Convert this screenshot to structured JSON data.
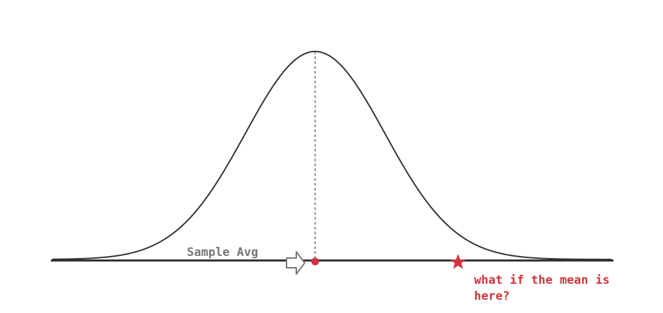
{
  "diagram": {
    "sample_label": "Sample Avg",
    "mean_label_line1": "what if the mean is",
    "mean_label_line2": "here?",
    "curve_color": "#333333",
    "sample_color": "#d0343e",
    "mean_color": "#d0343e",
    "arrow_color": "#777777",
    "sample_marker": "dot",
    "mean_marker": "star-icon",
    "pointer_icon": "right-arrow-icon"
  }
}
